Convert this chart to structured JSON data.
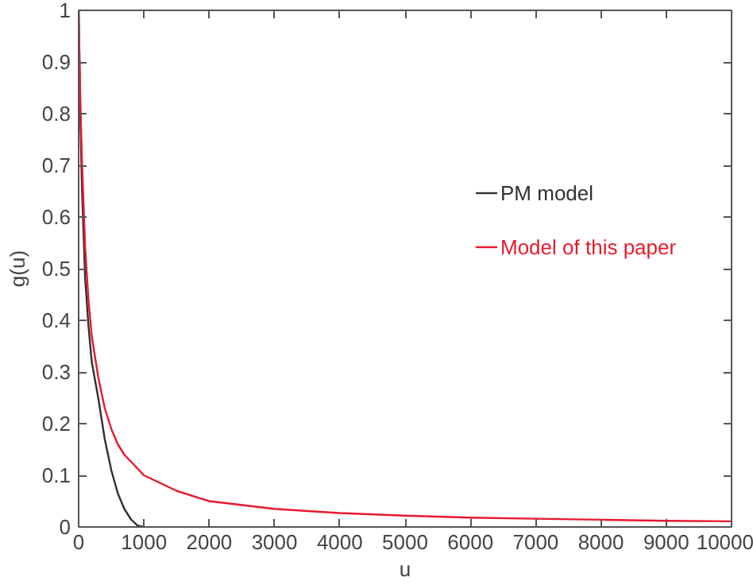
{
  "chart_data": {
    "type": "line",
    "xlabel": "u",
    "ylabel": "g(u)",
    "xlim": [
      0,
      10000
    ],
    "ylim": [
      0,
      1
    ],
    "xticks": [
      0,
      1000,
      2000,
      3000,
      4000,
      5000,
      6000,
      7000,
      8000,
      9000,
      10000
    ],
    "yticks": [
      0,
      0.1,
      0.2,
      0.3,
      0.4,
      0.5,
      0.6,
      0.7,
      0.8,
      0.9,
      1
    ],
    "grid": false,
    "legend": "right",
    "marker": "none",
    "line_style": "solid",
    "series": [
      {
        "name": "PM model",
        "color": "#303030",
        "x": [
          0,
          25,
          50,
          100,
          150,
          200,
          300,
          400,
          500,
          600,
          700,
          800,
          900,
          1000
        ],
        "values": [
          1,
          0.8,
          0.66,
          0.48,
          0.39,
          0.32,
          0.25,
          0.17,
          0.11,
          0.065,
          0.035,
          0.015,
          0.003,
          0
        ]
      },
      {
        "name": "Model of this paper",
        "color": "#e8192c",
        "x": [
          0,
          25,
          50,
          100,
          150,
          200,
          300,
          400,
          500,
          600,
          700,
          1000,
          1500,
          2000,
          3000,
          4000,
          5000,
          6000,
          7000,
          8000,
          9000,
          10000
        ],
        "values": [
          1,
          0.83,
          0.71,
          0.54,
          0.44,
          0.37,
          0.29,
          0.23,
          0.19,
          0.16,
          0.14,
          0.1,
          0.07,
          0.05,
          0.035,
          0.027,
          0.022,
          0.018,
          0.016,
          0.014,
          0.012,
          0.011
        ]
      }
    ]
  }
}
